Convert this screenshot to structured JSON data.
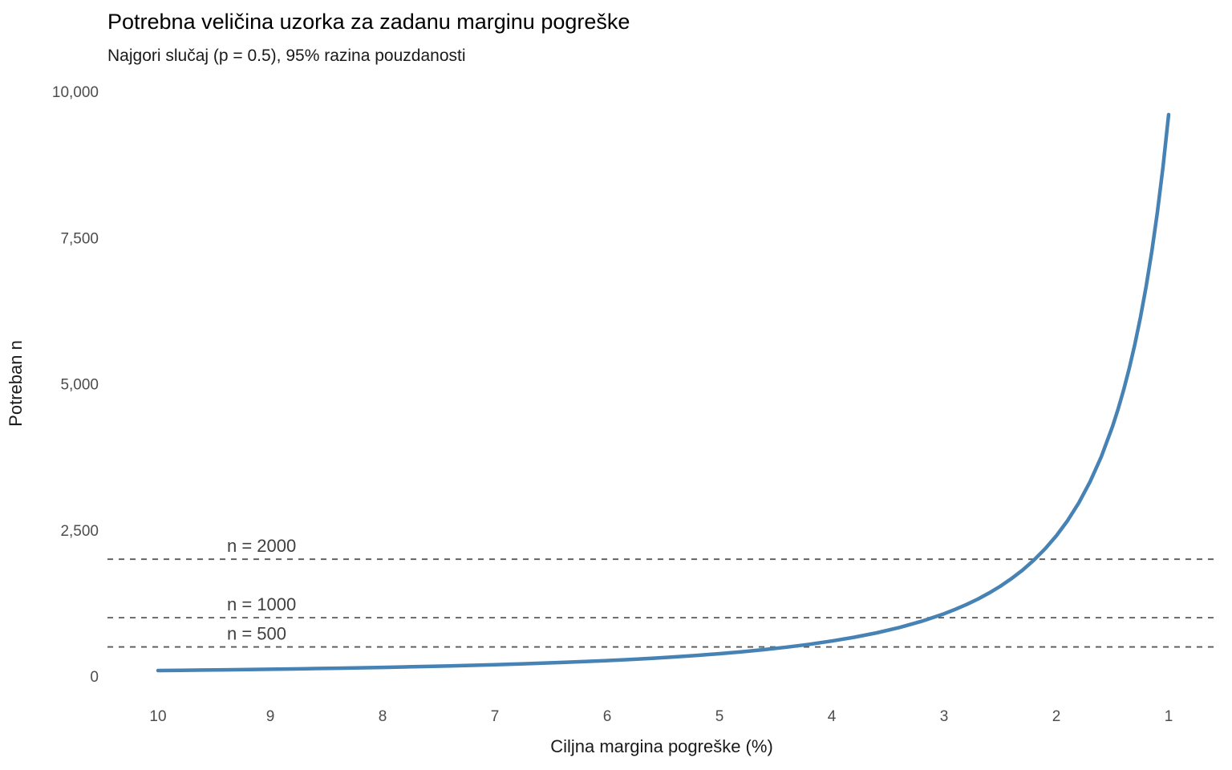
{
  "chart_data": {
    "type": "line",
    "title": "Potrebna veličina uzorka za zadanu marginu pogreške",
    "subtitle": "Najgori slučaj (p = 0.5), 95% razina pouzdanosti",
    "xlabel": "Ciljna margina pogreške (%)",
    "ylabel": "Potreban n",
    "grid": "none",
    "legend": "none",
    "x_axis": {
      "domain": [
        10,
        1
      ],
      "reversed": true,
      "ticks": [
        {
          "v": 10,
          "label": "10"
        },
        {
          "v": 9,
          "label": "9"
        },
        {
          "v": 8,
          "label": "8"
        },
        {
          "v": 7,
          "label": "7"
        },
        {
          "v": 6,
          "label": "6"
        },
        {
          "v": 5,
          "label": "5"
        },
        {
          "v": 4,
          "label": "4"
        },
        {
          "v": 3,
          "label": "3"
        },
        {
          "v": 2,
          "label": "2"
        },
        {
          "v": 1,
          "label": "1"
        }
      ]
    },
    "y_axis": {
      "domain": [
        0,
        10000
      ],
      "ticks": [
        {
          "v": 0,
          "label": "0"
        },
        {
          "v": 2500,
          "label": "2,500"
        },
        {
          "v": 5000,
          "label": "5,000"
        },
        {
          "v": 7500,
          "label": "7,500"
        },
        {
          "v": 10000,
          "label": "10,000"
        }
      ]
    },
    "reference_lines": [
      {
        "y": 2000,
        "label": "n = 2000"
      },
      {
        "y": 1000,
        "label": "n = 1000"
      },
      {
        "y": 500,
        "label": "n = 500"
      }
    ],
    "series": [
      {
        "name": "Potreban n",
        "color": "#4682B4",
        "x": [
          10,
          9.8,
          9.6,
          9.4,
          9.2,
          9,
          8.8,
          8.6,
          8.4,
          8.2,
          8,
          7.8,
          7.6,
          7.4,
          7.2,
          7,
          6.8,
          6.6,
          6.4,
          6.2,
          6,
          5.8,
          5.6,
          5.4,
          5.2,
          5,
          4.8,
          4.6,
          4.4,
          4.2,
          4,
          3.8,
          3.6,
          3.4,
          3.2,
          3,
          2.9,
          2.8,
          2.7,
          2.6,
          2.5,
          2.4,
          2.3,
          2.2,
          2.1,
          2,
          1.9,
          1.8,
          1.7,
          1.6,
          1.5,
          1.45,
          1.4,
          1.35,
          1.3,
          1.25,
          1.2,
          1.15,
          1.1,
          1.05,
          1
        ],
        "y": [
          96,
          100,
          104.2,
          108.7,
          113.5,
          118.6,
          124,
          129.9,
          136.1,
          142.8,
          150.1,
          157.9,
          166.3,
          175.4,
          185.3,
          196,
          207.7,
          220.5,
          234.5,
          249.8,
          266.8,
          285.5,
          306.3,
          329.4,
          355.2,
          384.2,
          416.8,
          453.9,
          496.1,
          544.4,
          600.3,
          665.1,
          741,
          830.8,
          937.9,
          1067.1,
          1142,
          1225,
          1317.4,
          1420.7,
          1536.6,
          1667.4,
          1815.5,
          1984.3,
          2177.8,
          2401,
          2660.4,
          2964.2,
          3323.2,
          3751.6,
          4268.4,
          4568,
          4900,
          5269.7,
          5682.8,
          6146.6,
          6669.4,
          7262,
          7937.2,
          8711.1,
          9604
        ]
      }
    ]
  }
}
